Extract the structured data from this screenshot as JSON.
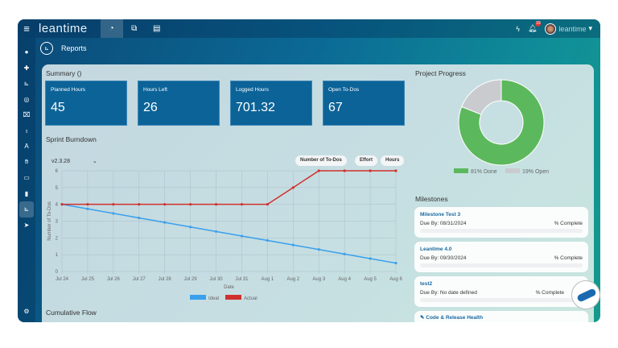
{
  "app": {
    "logo": "leantime",
    "user": "leantime",
    "notifications": "19"
  },
  "page": {
    "title": "Reports"
  },
  "summary": {
    "title": "Summary ()",
    "cards": [
      {
        "label": "Planned Hours",
        "value": "45"
      },
      {
        "label": "Hours Left",
        "value": "26"
      },
      {
        "label": "Logged Hours",
        "value": "701.32"
      },
      {
        "label": "Open To-Dos",
        "value": "67"
      }
    ]
  },
  "burndown": {
    "title": "Sprint Burndown",
    "version": "v2.3.28",
    "toggles": [
      "Number of To-Dos",
      "Effort",
      "Hours"
    ]
  },
  "cumulative": {
    "title": "Cumulative Flow"
  },
  "chart_data": [
    {
      "type": "line",
      "xlabel": "Date",
      "ylabel": "Number of To-Dos",
      "ylim": [
        0,
        6
      ],
      "yticks": [
        "0",
        "1",
        "2",
        "3",
        "4",
        "5",
        "6"
      ],
      "grid": true,
      "legend": "bottom",
      "categories": [
        "Jul 24",
        "Jul 25",
        "Jul 26",
        "Jul 27",
        "Jul 28",
        "Jul 29",
        "Jul 30",
        "Jul 31",
        "Aug 1",
        "Aug 2",
        "Aug 3",
        "Aug 4",
        "Aug 5",
        "Aug 6"
      ],
      "series": [
        {
          "name": "Ideal",
          "color": "#3aa0ec",
          "values": [
            4,
            3.73,
            3.46,
            3.19,
            2.92,
            2.65,
            2.38,
            2.11,
            1.85,
            1.58,
            1.31,
            1.04,
            0.77,
            0.5
          ]
        },
        {
          "name": "Actual",
          "color": "#d0312d",
          "values": [
            4,
            4,
            4,
            4,
            4,
            4,
            4,
            4,
            4,
            5,
            6,
            6,
            6,
            6
          ]
        }
      ]
    },
    {
      "type": "pie",
      "title": "Project Progress",
      "donut": true,
      "slices": [
        {
          "name": "81% Done",
          "value": 81,
          "color": "#5cb85c"
        },
        {
          "name": "19% Open",
          "value": 19,
          "color": "#c9cbcf"
        }
      ]
    }
  ],
  "progress": {
    "title": "Project Progress",
    "legend": [
      "81% Done",
      "19% Open"
    ]
  },
  "milestones": {
    "title": "Milestones",
    "items": [
      {
        "name": "Milestone Test 3",
        "due": "Due By: 08/31/2024",
        "complete": "% Complete"
      },
      {
        "name": "Leantime 4.0",
        "due": "Due By: 09/30/2024",
        "complete": "% Complete"
      },
      {
        "name": "test2",
        "due": "Due By: No date defined",
        "complete": "% Complete"
      }
    ],
    "next": "Code & Release Health"
  }
}
